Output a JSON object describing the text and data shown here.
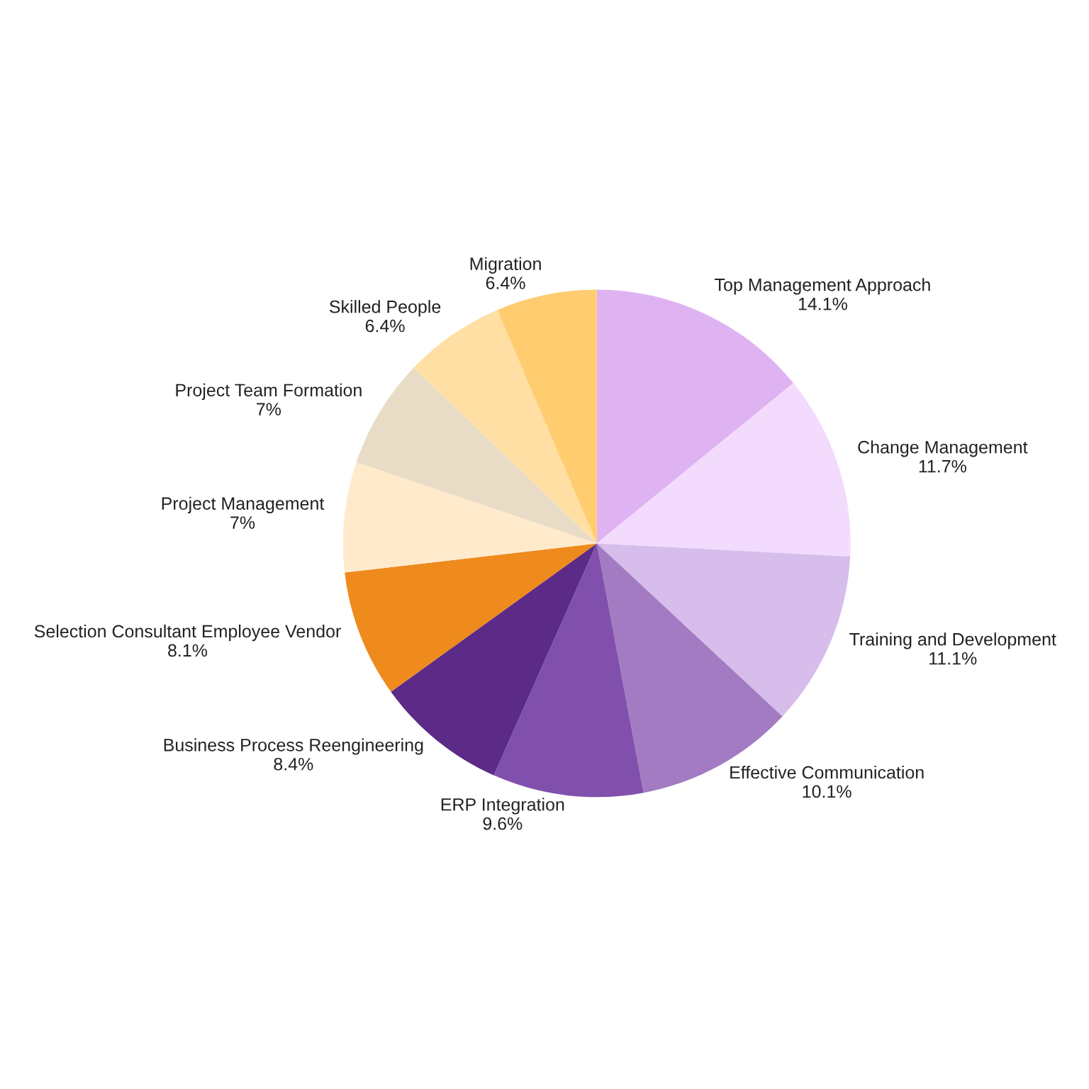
{
  "chart_data": {
    "type": "pie",
    "categories": [
      "Top Management Approach",
      "Change Management",
      "Training and Development",
      "Effective Communication",
      "ERP Integration",
      "Business Process Reengineering",
      "Selection Consultant Employee Vendor",
      "Project Management",
      "Project Team Formation",
      "Skilled People",
      "Migration"
    ],
    "values": [
      14.1,
      11.7,
      11.1,
      10.1,
      9.6,
      8.4,
      8.1,
      7,
      7,
      6.4,
      6.4
    ],
    "value_labels": [
      "14.1%",
      "11.7%",
      "11.1%",
      "10.1%",
      "9.6%",
      "8.4%",
      "8.1%",
      "7%",
      "7%",
      "6.4%",
      "6.4%"
    ],
    "colors": [
      "#dfb3f2",
      "#f3dbfd",
      "#d7bdeb",
      "#a27bc2",
      "#8150ad",
      "#5c2a87",
      "#ef8a1d",
      "#ffebcc",
      "#e8dcc6",
      "#ffdfa3",
      "#ffcc70"
    ],
    "legend": false
  }
}
